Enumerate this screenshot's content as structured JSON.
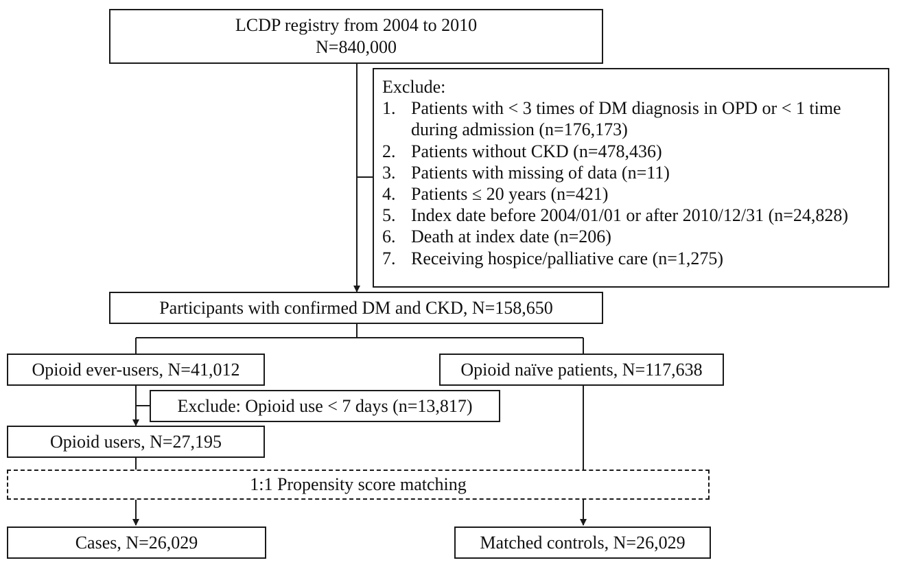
{
  "registry": {
    "line1": "LCDP registry from 2004 to 2010",
    "line2": "N=840,000"
  },
  "exclude": {
    "heading": "Exclude:",
    "items": [
      {
        "num": "1.",
        "text": "Patients with < 3 times of DM diagnosis in OPD or < 1 time during admission (n=176,173)"
      },
      {
        "num": "2.",
        "text": "Patients without CKD (n=478,436)"
      },
      {
        "num": "3.",
        "text": "Patients with missing of data (n=11)"
      },
      {
        "num": "4.",
        "text": "Patients ≤ 20 years (n=421)"
      },
      {
        "num": "5.",
        "text": "Index date before 2004/01/01 or after 2010/12/31 (n=24,828)"
      },
      {
        "num": "6.",
        "text": "Death at index date (n=206)"
      },
      {
        "num": "7.",
        "text": "Receiving hospice/palliative care (n=1,275)"
      }
    ]
  },
  "participants": "Participants with confirmed DM and CKD, N=158,650",
  "ever_users": "Opioid ever-users, N=41,012",
  "naive": "Opioid naïve patients, N=117,638",
  "exclude_short": "Exclude: Opioid use < 7 days (n=13,817)",
  "users": "Opioid users, N=27,195",
  "matching": "1:1 Propensity score matching",
  "cases": "Cases, N=26,029",
  "controls": "Matched controls, N=26,029"
}
